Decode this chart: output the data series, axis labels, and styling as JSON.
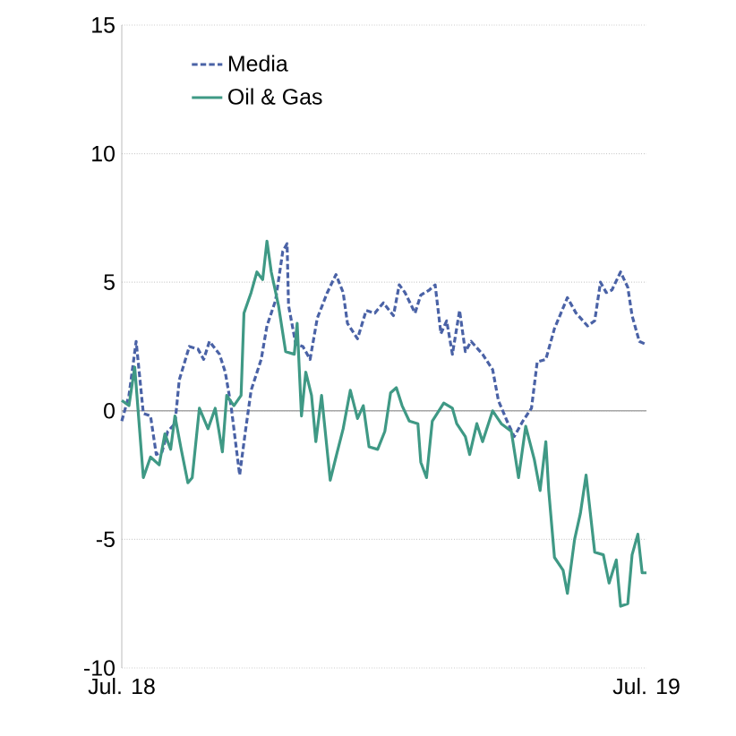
{
  "chart_data": {
    "type": "line",
    "xlim": [
      "2018-07-01",
      "2019-07-01"
    ],
    "xticks": [
      {
        "value": "2018-07-01",
        "label": "Jul. 18"
      },
      {
        "value": "2019-07-01",
        "label": "Jul. 19"
      }
    ],
    "ylim": [
      -10,
      15
    ],
    "yticks": [
      -10,
      -5,
      0,
      5,
      10,
      15
    ],
    "grid": "y",
    "legend": "top left",
    "ref_lines": [
      {
        "axis": "y",
        "value": 0,
        "color": "#a6a6a6",
        "line_style": "solid"
      }
    ],
    "series": [
      {
        "name": "Media",
        "color": "#4a62a6",
        "line_style": "dashed",
        "x": [
          "2018-07-01",
          "2018-07-06",
          "2018-07-11",
          "2018-07-16",
          "2018-07-21",
          "2018-07-25",
          "2018-07-29",
          "2018-08-02",
          "2018-08-07",
          "2018-08-10",
          "2018-08-17",
          "2018-08-23",
          "2018-08-27",
          "2018-08-31",
          "2018-09-07",
          "2018-09-11",
          "2018-09-15",
          "2018-09-21",
          "2018-09-25",
          "2018-09-29",
          "2018-10-06",
          "2018-10-10",
          "2018-10-16",
          "2018-10-21",
          "2018-10-24",
          "2018-10-25",
          "2018-10-30",
          "2018-11-04",
          "2018-11-09",
          "2018-11-14",
          "2018-11-21",
          "2018-11-27",
          "2018-12-02",
          "2018-12-05",
          "2018-12-12",
          "2018-12-18",
          "2018-12-24",
          "2018-12-30",
          "2019-01-06",
          "2019-01-10",
          "2019-01-14",
          "2019-01-21",
          "2019-01-25",
          "2019-01-31",
          "2019-02-04",
          "2019-02-08",
          "2019-02-12",
          "2019-02-16",
          "2019-02-21",
          "2019-02-25",
          "2019-03-01",
          "2019-03-09",
          "2019-03-16",
          "2019-03-20",
          "2019-03-26",
          "2019-03-31",
          "2019-04-06",
          "2019-04-12",
          "2019-04-16",
          "2019-04-22",
          "2019-04-28",
          "2019-05-07",
          "2019-05-13",
          "2019-05-21",
          "2019-05-26",
          "2019-05-30",
          "2019-06-03",
          "2019-06-07",
          "2019-06-13",
          "2019-06-18",
          "2019-06-21",
          "2019-06-26",
          "2019-06-30"
        ],
        "values": [
          -0.4,
          0.6,
          2.7,
          -0.1,
          -0.2,
          -1.7,
          -1.6,
          -0.8,
          -0.5,
          1.2,
          2.5,
          2.4,
          2.0,
          2.7,
          2.2,
          1.5,
          0.2,
          -2.5,
          -0.8,
          0.8,
          2.0,
          3.3,
          4.3,
          6.2,
          6.5,
          4.1,
          2.6,
          2.5,
          2.0,
          3.6,
          4.6,
          5.3,
          4.6,
          3.4,
          2.8,
          3.9,
          3.8,
          4.2,
          3.7,
          4.9,
          4.6,
          3.8,
          4.5,
          4.7,
          4.9,
          3.0,
          3.5,
          2.2,
          3.9,
          2.3,
          2.7,
          2.2,
          1.6,
          0.4,
          -0.4,
          -1.0,
          -0.4,
          0.1,
          1.9,
          2.0,
          3.2,
          4.4,
          3.8,
          3.3,
          3.5,
          5.0,
          4.6,
          4.7,
          5.4,
          4.8,
          3.7,
          2.7,
          2.6
        ]
      },
      {
        "name": "Oil & Gas",
        "color": "#3f9985",
        "line_style": "solid",
        "x": [
          "2018-07-01",
          "2018-07-06",
          "2018-07-10",
          "2018-07-16",
          "2018-07-21",
          "2018-07-27",
          "2018-07-31",
          "2018-08-04",
          "2018-08-07",
          "2018-08-11",
          "2018-08-16",
          "2018-08-19",
          "2018-08-24",
          "2018-08-30",
          "2018-09-04",
          "2018-09-09",
          "2018-09-12",
          "2018-09-17",
          "2018-09-22",
          "2018-09-24",
          "2018-09-29",
          "2018-10-03",
          "2018-10-07",
          "2018-10-10",
          "2018-10-13",
          "2018-10-18",
          "2018-10-23",
          "2018-10-29",
          "2018-10-31",
          "2018-11-03",
          "2018-11-06",
          "2018-11-10",
          "2018-11-13",
          "2018-11-17",
          "2018-11-23",
          "2018-11-27",
          "2018-12-02",
          "2018-12-07",
          "2018-12-12",
          "2018-12-16",
          "2018-12-20",
          "2018-12-26",
          "2018-12-31",
          "2019-01-04",
          "2019-01-08",
          "2019-01-12",
          "2019-01-17",
          "2019-01-23",
          "2019-01-25",
          "2019-01-29",
          "2019-02-02",
          "2019-02-10",
          "2019-02-16",
          "2019-02-19",
          "2019-02-25",
          "2019-02-28",
          "2019-03-05",
          "2019-03-09",
          "2019-03-16",
          "2019-03-22",
          "2019-03-29",
          "2019-04-03",
          "2019-04-08",
          "2019-04-14",
          "2019-04-18",
          "2019-04-22",
          "2019-04-24",
          "2019-04-28",
          "2019-05-04",
          "2019-05-07",
          "2019-05-12",
          "2019-05-16",
          "2019-05-20",
          "2019-05-26",
          "2019-06-01",
          "2019-06-05",
          "2019-06-10",
          "2019-06-13",
          "2019-06-18",
          "2019-06-21",
          "2019-06-25",
          "2019-06-28",
          "2019-07-01"
        ],
        "values": [
          0.4,
          0.2,
          1.7,
          -2.6,
          -1.8,
          -2.1,
          -0.9,
          -1.5,
          -0.2,
          -1.4,
          -2.8,
          -2.6,
          0.1,
          -0.7,
          0.1,
          -1.6,
          0.6,
          0.2,
          0.6,
          3.8,
          4.6,
          5.4,
          5.1,
          6.6,
          5.4,
          4.1,
          2.3,
          2.2,
          3.4,
          -0.2,
          1.5,
          0.6,
          -1.2,
          0.6,
          -2.7,
          -1.8,
          -0.7,
          0.8,
          -0.3,
          0.2,
          -1.4,
          -1.5,
          -0.8,
          0.7,
          0.9,
          0.2,
          -0.4,
          -0.5,
          -2.0,
          -2.6,
          -0.4,
          0.3,
          0.1,
          -0.5,
          -1.0,
          -1.7,
          -0.5,
          -1.2,
          0,
          -0.5,
          -0.8,
          -2.6,
          -0.6,
          -1.9,
          -3.1,
          -1.2,
          -3.1,
          -5.7,
          -6.2,
          -7.1,
          -5.0,
          -4.0,
          -2.5,
          -5.5,
          -5.6,
          -6.7,
          -5.8,
          -7.6,
          -7.5,
          -5.6,
          -4.8,
          -6.3,
          -6.3
        ]
      }
    ]
  }
}
